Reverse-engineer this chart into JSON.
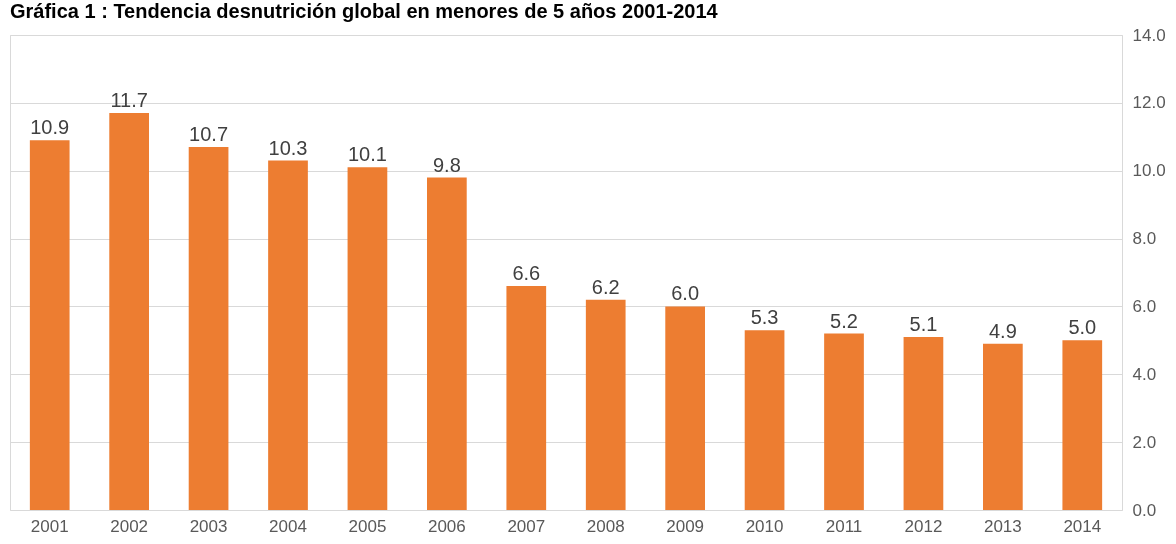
{
  "chart_data": {
    "type": "bar",
    "title": "Gráfica 1 : Tendencia desnutrición global en menores de 5 años 2001-2014",
    "categories": [
      "2001",
      "2002",
      "2003",
      "2004",
      "2005",
      "2006",
      "2007",
      "2008",
      "2009",
      "2010",
      "2011",
      "2012",
      "2013",
      "2014"
    ],
    "values": [
      10.9,
      11.7,
      10.7,
      10.3,
      10.1,
      9.8,
      6.6,
      6.2,
      6.0,
      5.3,
      5.2,
      5.1,
      4.9,
      5.0
    ],
    "color": "#ed7d31",
    "ylim": [
      0,
      14
    ],
    "yticks": [
      {
        "value": 0,
        "label": "0.0"
      },
      {
        "value": 2,
        "label": "2.0"
      },
      {
        "value": 4,
        "label": "4.0"
      },
      {
        "value": 6,
        "label": "6.0"
      },
      {
        "value": 8,
        "label": "8.0"
      },
      {
        "value": 10,
        "label": "10.0"
      },
      {
        "value": 12,
        "label": "12.0"
      },
      {
        "value": 14,
        "label": "14.0"
      }
    ],
    "value_labels": [
      "10.9",
      "11.7",
      "10.7",
      "10.3",
      "10.1",
      "9.8",
      "6.6",
      "6.2",
      "6.0",
      "5.3",
      "5.2",
      "5.1",
      "4.9",
      "5.0"
    ],
    "grid": "y"
  }
}
